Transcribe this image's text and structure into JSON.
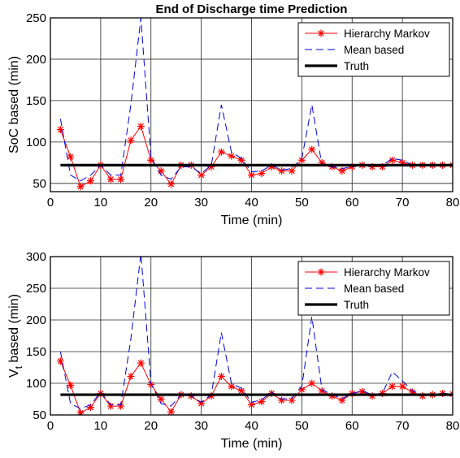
{
  "chart_data": [
    {
      "type": "line",
      "title": "End of Discharge time Prediction",
      "xlabel": "Time (min)",
      "ylabel": "SoC based (min)",
      "xlim": [
        0,
        80
      ],
      "ylim": [
        40,
        250
      ],
      "xticks": [
        "0",
        "10",
        "20",
        "30",
        "40",
        "50",
        "60",
        "70",
        "80"
      ],
      "yticks": [
        "50",
        "100",
        "150",
        "200",
        "250"
      ],
      "grid": true,
      "legend_position": "top-right",
      "series": [
        {
          "name": "Hierarchy Markov",
          "color": "#ff0000",
          "style": "solid-star",
          "x": [
            2,
            4,
            6,
            8,
            10,
            12,
            14,
            16,
            18,
            20,
            22,
            24,
            26,
            28,
            30,
            32,
            34,
            36,
            38,
            40,
            42,
            44,
            46,
            48,
            50,
            52,
            54,
            56,
            58,
            60,
            62,
            64,
            66,
            68,
            70,
            72,
            74,
            76,
            78,
            80
          ],
          "y": [
            115,
            82,
            46,
            53,
            72,
            55,
            55,
            102,
            119,
            78,
            65,
            49,
            72,
            72,
            60,
            70,
            88,
            83,
            78,
            60,
            62,
            70,
            65,
            65,
            78,
            91,
            75,
            70,
            65,
            70,
            72,
            70,
            70,
            78,
            75,
            72,
            72,
            72,
            72,
            72
          ]
        },
        {
          "name": "Mean based",
          "color": "#0000dd",
          "style": "dashed",
          "x": [
            2,
            4,
            6,
            8,
            10,
            12,
            14,
            16,
            18,
            20,
            22,
            24,
            26,
            28,
            30,
            32,
            34,
            36,
            38,
            40,
            42,
            44,
            46,
            48,
            50,
            52,
            54,
            56,
            58,
            60,
            62,
            64,
            66,
            68,
            70,
            72,
            74,
            76,
            78,
            80
          ],
          "y": [
            128,
            60,
            53,
            60,
            72,
            60,
            60,
            145,
            250,
            82,
            60,
            55,
            70,
            70,
            62,
            72,
            145,
            88,
            80,
            64,
            65,
            72,
            66,
            68,
            80,
            145,
            72,
            70,
            68,
            70,
            72,
            70,
            72,
            80,
            78,
            72,
            72,
            72,
            72,
            72
          ]
        },
        {
          "name": "Truth",
          "color": "#000000",
          "style": "thick-solid",
          "x": [
            2,
            80
          ],
          "y": [
            72,
            72
          ]
        }
      ]
    },
    {
      "type": "line",
      "title": "",
      "xlabel": "Time (min)",
      "ylabel": "V",
      "ylabel_subscript": "t",
      "ylabel_suffix": " based (min)",
      "xlim": [
        0,
        80
      ],
      "ylim": [
        50,
        300
      ],
      "xticks": [
        "0",
        "10",
        "20",
        "30",
        "40",
        "50",
        "60",
        "70",
        "80"
      ],
      "yticks": [
        "50",
        "100",
        "150",
        "200",
        "250",
        "300"
      ],
      "grid": true,
      "legend_position": "top-right",
      "series": [
        {
          "name": "Hierarchy Markov",
          "color": "#ff0000",
          "style": "solid-star",
          "x": [
            2,
            4,
            6,
            8,
            10,
            12,
            14,
            16,
            18,
            20,
            22,
            24,
            26,
            28,
            30,
            32,
            34,
            36,
            38,
            40,
            42,
            44,
            46,
            48,
            50,
            52,
            54,
            56,
            58,
            60,
            62,
            64,
            66,
            68,
            70,
            72,
            74,
            76,
            78,
            80
          ],
          "y": [
            135,
            97,
            53,
            62,
            84,
            64,
            64,
            111,
            132,
            98,
            75,
            55,
            82,
            80,
            68,
            80,
            111,
            95,
            88,
            66,
            71,
            84,
            73,
            73,
            90,
            100,
            88,
            80,
            73,
            84,
            87,
            80,
            84,
            95,
            95,
            86,
            80,
            82,
            84,
            83
          ]
        },
        {
          "name": "Mean based",
          "color": "#0000dd",
          "style": "dashed",
          "x": [
            2,
            4,
            6,
            8,
            10,
            12,
            14,
            16,
            18,
            20,
            22,
            24,
            26,
            28,
            30,
            32,
            34,
            36,
            38,
            40,
            42,
            44,
            46,
            48,
            50,
            52,
            54,
            56,
            58,
            60,
            62,
            64,
            66,
            68,
            70,
            72,
            74,
            76,
            78,
            80
          ],
          "y": [
            150,
            68,
            60,
            66,
            86,
            66,
            66,
            170,
            305,
            100,
            68,
            64,
            82,
            80,
            70,
            82,
            180,
            100,
            92,
            70,
            74,
            86,
            75,
            76,
            95,
            205,
            90,
            82,
            76,
            84,
            88,
            82,
            84,
            118,
            104,
            88,
            82,
            82,
            84,
            83
          ]
        },
        {
          "name": "Truth",
          "color": "#000000",
          "style": "thick-solid",
          "x": [
            2,
            80
          ],
          "y": [
            82,
            82
          ]
        }
      ]
    }
  ]
}
